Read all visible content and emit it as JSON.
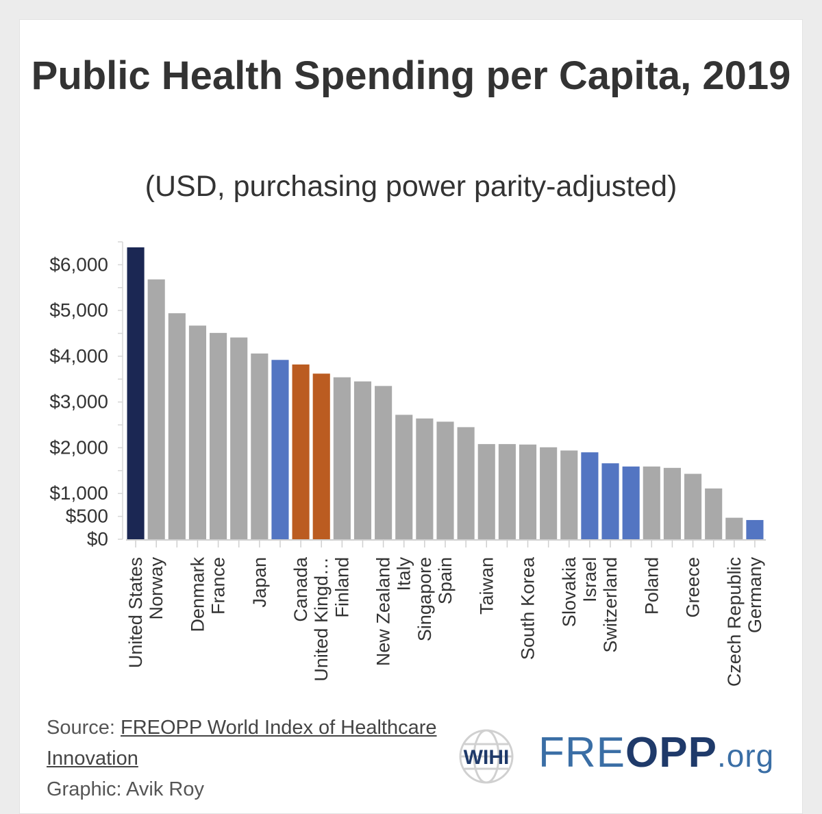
{
  "chart_data": {
    "type": "bar",
    "title": "Public Health Spending per Capita, 2019",
    "subtitle": "(USD, purchasing power parity-adjusted)",
    "xlabel": "",
    "ylabel": "",
    "ylim": [
      0,
      6500
    ],
    "yticks": [
      {
        "value": 0,
        "label": "$0"
      },
      {
        "value": 500,
        "label": "$500"
      },
      {
        "value": 1000,
        "label": "$1,000"
      },
      {
        "value": 2000,
        "label": "$2,000"
      },
      {
        "value": 3000,
        "label": "$3,000"
      },
      {
        "value": 4000,
        "label": "$4,000"
      },
      {
        "value": 5000,
        "label": "$5,000"
      },
      {
        "value": 6000,
        "label": "$6,000"
      }
    ],
    "bars": [
      {
        "name": "United States",
        "value": 6380,
        "label": "United States",
        "color": "#1b2753"
      },
      {
        "name": "Norway",
        "value": 5680,
        "label": "Norway",
        "color": "#a9a9a9"
      },
      {
        "name": "",
        "value": 4940,
        "label": "",
        "color": "#a9a9a9"
      },
      {
        "name": "Denmark",
        "value": 4670,
        "label": "Denmark",
        "color": "#a9a9a9"
      },
      {
        "name": "France",
        "value": 4510,
        "label": "France",
        "color": "#a9a9a9"
      },
      {
        "name": "",
        "value": 4410,
        "label": "",
        "color": "#a9a9a9"
      },
      {
        "name": "Japan",
        "value": 4060,
        "label": "Japan",
        "color": "#a9a9a9"
      },
      {
        "name": "",
        "value": 3920,
        "label": "",
        "color": "#5375c2"
      },
      {
        "name": "Canada",
        "value": 3820,
        "label": "Canada",
        "color": "#bb5c21"
      },
      {
        "name": "United Kingdom",
        "value": 3620,
        "label": "United Kingd…",
        "color": "#bb5c21"
      },
      {
        "name": "Finland",
        "value": 3540,
        "label": "Finland",
        "color": "#a9a9a9"
      },
      {
        "name": "",
        "value": 3450,
        "label": "",
        "color": "#a9a9a9"
      },
      {
        "name": "New Zealand",
        "value": 3350,
        "label": "New Zealand",
        "color": "#a9a9a9"
      },
      {
        "name": "Italy",
        "value": 2720,
        "label": "Italy",
        "color": "#a9a9a9"
      },
      {
        "name": "Singapore",
        "value": 2640,
        "label": "Singapore",
        "color": "#a9a9a9"
      },
      {
        "name": "Spain",
        "value": 2570,
        "label": "Spain",
        "color": "#a9a9a9"
      },
      {
        "name": "",
        "value": 2450,
        "label": "",
        "color": "#a9a9a9"
      },
      {
        "name": "Taiwan",
        "value": 2080,
        "label": "Taiwan",
        "color": "#a9a9a9"
      },
      {
        "name": "",
        "value": 2080,
        "label": "",
        "color": "#a9a9a9"
      },
      {
        "name": "South Korea",
        "value": 2070,
        "label": "South Korea",
        "color": "#a9a9a9"
      },
      {
        "name": "",
        "value": 2010,
        "label": "",
        "color": "#a9a9a9"
      },
      {
        "name": "Slovakia",
        "value": 1940,
        "label": "Slovakia",
        "color": "#a9a9a9"
      },
      {
        "name": "Israel",
        "value": 1900,
        "label": "Israel",
        "color": "#5375c2"
      },
      {
        "name": "Switzerland",
        "value": 1660,
        "label": "Switzerland",
        "color": "#5375c2"
      },
      {
        "name": "",
        "value": 1590,
        "label": "",
        "color": "#5375c2"
      },
      {
        "name": "Poland",
        "value": 1590,
        "label": "Poland",
        "color": "#a9a9a9"
      },
      {
        "name": "",
        "value": 1560,
        "label": "",
        "color": "#a9a9a9"
      },
      {
        "name": "Greece",
        "value": 1430,
        "label": "Greece",
        "color": "#a9a9a9"
      },
      {
        "name": "",
        "value": 1110,
        "label": "",
        "color": "#a9a9a9"
      },
      {
        "name": "Czech Republic",
        "value": 470,
        "label": "Czech Republic",
        "color": "#a9a9a9"
      },
      {
        "name": "Germany",
        "value": 420,
        "label": "Germany",
        "color": "#5375c2"
      }
    ]
  },
  "footer": {
    "source_prefix": "Source: ",
    "source_link": "FREOPP World Index of Healthcare Innovation",
    "graphic_credit": "Graphic: Avik Roy"
  },
  "logos": {
    "wihi_text": "WIHI",
    "freopp_pre": "FRE",
    "freopp_o": "O",
    "freopp_post": "PP",
    "freopp_org": ".org"
  }
}
